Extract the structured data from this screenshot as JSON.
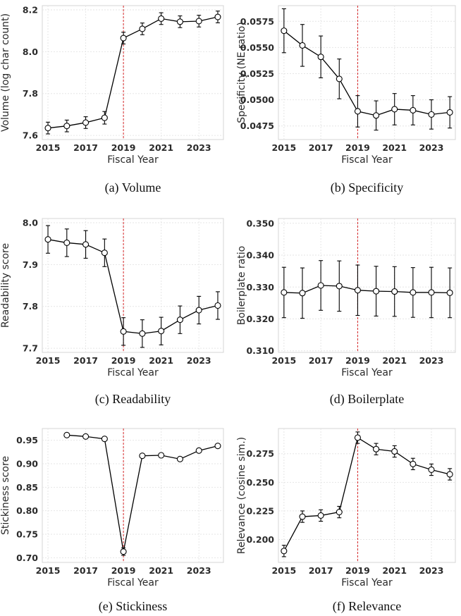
{
  "figure": {
    "x_ticks": [
      "2015",
      "2017",
      "2019",
      "2021",
      "2023"
    ],
    "x_tick_values": [
      2015,
      2017,
      2019,
      2021,
      2023
    ],
    "marker_fill": "#ffffff",
    "line_color": "#000000",
    "reference_line_color": "#d62728"
  },
  "chart_data": [
    {
      "type": "line",
      "caption": "(a) Volume",
      "xlabel": "Fiscal Year",
      "ylabel": "Volume (log char count)",
      "x": [
        2015,
        2016,
        2017,
        2018,
        2019,
        2020,
        2021,
        2022,
        2023,
        2024
      ],
      "y": [
        7.635,
        7.645,
        7.661,
        7.684,
        8.065,
        8.109,
        8.158,
        8.143,
        8.146,
        8.166
      ],
      "err": [
        0.028,
        0.028,
        0.028,
        0.03,
        0.028,
        0.028,
        0.028,
        0.028,
        0.028,
        0.028
      ],
      "xlim": [
        2014.7,
        2024.3
      ],
      "ylim": [
        7.58,
        8.22
      ],
      "yticks": [
        7.6,
        7.8,
        8.0,
        8.2
      ],
      "ytick_labels": [
        "7.6",
        "7.8",
        "8.0",
        "8.2"
      ],
      "reference_x": 2019,
      "grid": true
    },
    {
      "type": "line",
      "caption": "(b) Specificity",
      "xlabel": "Fiscal Year",
      "ylabel": "Specificity (NE ratio)",
      "x": [
        2015,
        2016,
        2017,
        2018,
        2019,
        2020,
        2021,
        2022,
        2023,
        2024
      ],
      "y": [
        0.0566,
        0.0552,
        0.0541,
        0.052,
        0.0489,
        0.0485,
        0.0491,
        0.049,
        0.0486,
        0.0488
      ],
      "err": [
        0.0021,
        0.002,
        0.002,
        0.0019,
        0.0015,
        0.0014,
        0.0015,
        0.0014,
        0.0014,
        0.0015
      ],
      "xlim": [
        2014.7,
        2024.3
      ],
      "ylim": [
        0.0462,
        0.059
      ],
      "yticks": [
        0.0475,
        0.05,
        0.0525,
        0.055,
        0.0575
      ],
      "ytick_labels": [
        "0.0475",
        "0.0500",
        "0.0525",
        "0.0550",
        "0.0575"
      ],
      "reference_x": 2019,
      "grid": true
    },
    {
      "type": "line",
      "caption": "(c) Readability",
      "xlabel": "Fiscal Year",
      "ylabel": "Readability score",
      "x": [
        2015,
        2016,
        2017,
        2018,
        2019,
        2020,
        2021,
        2022,
        2023,
        2024
      ],
      "y": [
        7.96,
        7.952,
        7.948,
        7.928,
        7.74,
        7.735,
        7.741,
        7.768,
        7.791,
        7.802
      ],
      "err": [
        0.033,
        0.033,
        0.033,
        0.033,
        0.033,
        0.033,
        0.033,
        0.033,
        0.033,
        0.033
      ],
      "xlim": [
        2014.7,
        2024.3
      ],
      "ylim": [
        7.69,
        8.01
      ],
      "yticks": [
        7.7,
        7.8,
        7.9,
        8.0
      ],
      "ytick_labels": [
        "7.7",
        "7.8",
        "7.9",
        "8.0"
      ],
      "reference_x": 2019,
      "grid": true
    },
    {
      "type": "line",
      "caption": "(d) Boilerplate",
      "xlabel": "Fiscal Year",
      "ylabel": "Boilerplate ratio",
      "x": [
        2015,
        2016,
        2017,
        2018,
        2019,
        2020,
        2021,
        2022,
        2023,
        2024
      ],
      "y": [
        0.3283,
        0.3281,
        0.3305,
        0.3303,
        0.329,
        0.3287,
        0.3286,
        0.3283,
        0.3283,
        0.3282
      ],
      "err": [
        0.0079,
        0.0079,
        0.0078,
        0.0079,
        0.0079,
        0.0078,
        0.0078,
        0.0078,
        0.0079,
        0.0078
      ],
      "xlim": [
        2014.7,
        2024.3
      ],
      "ylim": [
        0.3095,
        0.3515
      ],
      "yticks": [
        0.31,
        0.32,
        0.33,
        0.34,
        0.35
      ],
      "ytick_labels": [
        "0.310",
        "0.320",
        "0.330",
        "0.340",
        "0.350"
      ],
      "reference_x": 2019,
      "grid": true
    },
    {
      "type": "line",
      "caption": "(e) Stickiness",
      "xlabel": "Fiscal Year",
      "ylabel": "Stickiness score",
      "x": [
        2016,
        2017,
        2018,
        2019,
        2020,
        2021,
        2022,
        2023,
        2024
      ],
      "y": [
        0.961,
        0.958,
        0.953,
        0.713,
        0.917,
        0.918,
        0.91,
        0.928,
        0.938
      ],
      "err": [
        0,
        0,
        0,
        0.008,
        0,
        0,
        0,
        0,
        0
      ],
      "xlim": [
        2014.7,
        2024.3
      ],
      "ylim": [
        0.69,
        0.975
      ],
      "yticks": [
        0.7,
        0.75,
        0.8,
        0.85,
        0.9,
        0.95
      ],
      "ytick_labels": [
        "0.70",
        "0.75",
        "0.80",
        "0.85",
        "0.90",
        "0.95"
      ],
      "reference_x": 2019,
      "grid": true
    },
    {
      "type": "line",
      "caption": "(f) Relevance",
      "xlabel": "Fiscal Year",
      "ylabel": "Relevance (cosine sim.)",
      "x": [
        2015,
        2016,
        2017,
        2018,
        2019,
        2020,
        2021,
        2022,
        2023,
        2024
      ],
      "y": [
        0.19,
        0.22,
        0.221,
        0.224,
        0.289,
        0.279,
        0.277,
        0.266,
        0.261,
        0.257
      ],
      "err": [
        0.005,
        0.005,
        0.005,
        0.005,
        0.005,
        0.005,
        0.005,
        0.005,
        0.005,
        0.005
      ],
      "xlim": [
        2014.7,
        2024.3
      ],
      "ylim": [
        0.18,
        0.297
      ],
      "yticks": [
        0.2,
        0.225,
        0.25,
        0.275
      ],
      "ytick_labels": [
        "0.200",
        "0.225",
        "0.250",
        "0.275"
      ],
      "reference_x": 2019,
      "grid": true
    }
  ]
}
